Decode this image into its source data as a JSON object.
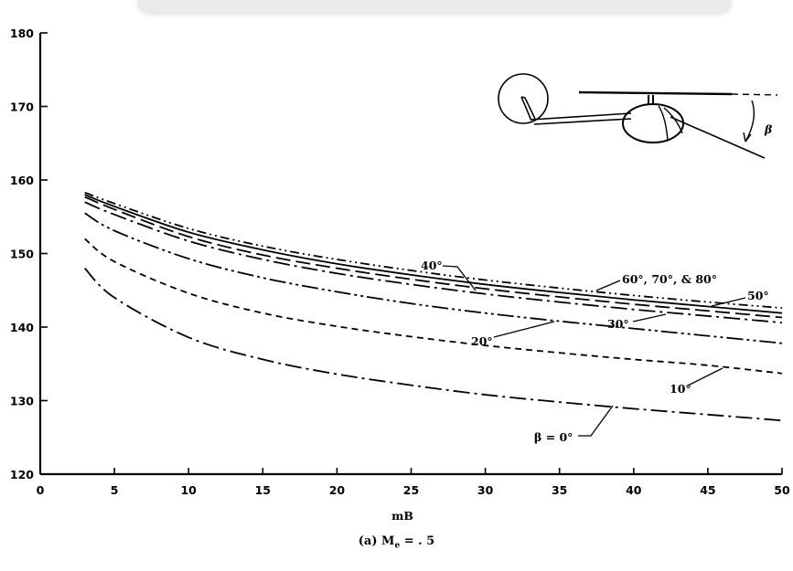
{
  "chart_data": {
    "type": "line",
    "xlabel": "mB",
    "ylabel": "",
    "xlim": [
      0,
      50
    ],
    "ylim": [
      120,
      180
    ],
    "x_ticks": [
      "0",
      "5",
      "10",
      "15",
      "20",
      "25",
      "30",
      "35",
      "40",
      "45",
      "50"
    ],
    "y_ticks": [
      "120",
      "130",
      "140",
      "150",
      "160",
      "170",
      "180"
    ],
    "caption": {
      "prefix": "(a) M",
      "subscript": "e",
      "suffix": " = . 5"
    },
    "grid": false,
    "series": [
      {
        "name": "β = 0°",
        "style": "longdash-dot",
        "x": [
          3,
          5,
          10,
          15,
          20,
          25,
          30,
          35,
          40,
          45,
          50
        ],
        "y": [
          148.0,
          144.0,
          138.6,
          135.6,
          133.6,
          132.1,
          130.8,
          129.8,
          128.9,
          128.1,
          127.3
        ]
      },
      {
        "name": "10°",
        "style": "dashed",
        "x": [
          3,
          5,
          10,
          15,
          20,
          25,
          30,
          35,
          40,
          45,
          50
        ],
        "y": [
          152.0,
          148.9,
          144.6,
          141.9,
          140.1,
          138.7,
          137.5,
          136.5,
          135.6,
          134.8,
          133.7
        ]
      },
      {
        "name": "20°",
        "style": "longdash-dot-dot",
        "x": [
          3,
          5,
          10,
          15,
          20,
          25,
          30,
          35,
          40,
          45,
          50
        ],
        "y": [
          155.5,
          153.1,
          149.3,
          146.7,
          144.8,
          143.2,
          141.9,
          140.8,
          139.8,
          138.8,
          137.8
        ]
      },
      {
        "name": "30°",
        "style": "longdash-dot",
        "x": [
          3,
          5,
          10,
          15,
          20,
          25,
          30,
          35,
          40,
          45,
          50
        ],
        "y": [
          157.0,
          155.3,
          151.7,
          149.2,
          147.3,
          145.8,
          144.5,
          143.4,
          142.4,
          141.5,
          140.6
        ]
      },
      {
        "name": "40°",
        "style": "longdash",
        "x": [
          3,
          5,
          10,
          15,
          20,
          25,
          30,
          35,
          40,
          45,
          50
        ],
        "y": [
          157.7,
          156.0,
          152.3,
          149.8,
          148.0,
          146.5,
          145.2,
          144.1,
          143.1,
          142.2,
          141.3
        ]
      },
      {
        "name": "50°",
        "style": "solid",
        "x": [
          3,
          5,
          10,
          15,
          20,
          25,
          30,
          35,
          40,
          45,
          50
        ],
        "y": [
          158.0,
          156.4,
          152.9,
          150.5,
          148.6,
          147.1,
          145.8,
          144.7,
          143.7,
          142.8,
          141.9
        ]
      },
      {
        "name": "60°, 70°, & 80°",
        "style": "dash-dot-dot",
        "x": [
          3,
          5,
          10,
          15,
          20,
          25,
          30,
          35,
          40,
          45,
          50
        ],
        "y": [
          158.3,
          156.8,
          153.4,
          151.0,
          149.2,
          147.7,
          146.4,
          145.3,
          144.3,
          143.4,
          142.6
        ]
      }
    ],
    "annotations": [
      {
        "text": "40°",
        "series": "40°"
      },
      {
        "text": "60°, 70°, & 80°",
        "series": "60°, 70°, & 80°"
      },
      {
        "text": "50°",
        "series": "50°"
      },
      {
        "text": "30°",
        "series": "30°"
      },
      {
        "text": "20°",
        "series": "20°"
      },
      {
        "text": "10°",
        "series": "10°"
      },
      {
        "text": "β = 0°",
        "series": "β = 0°"
      }
    ],
    "inset": {
      "angle_label": "β"
    }
  }
}
